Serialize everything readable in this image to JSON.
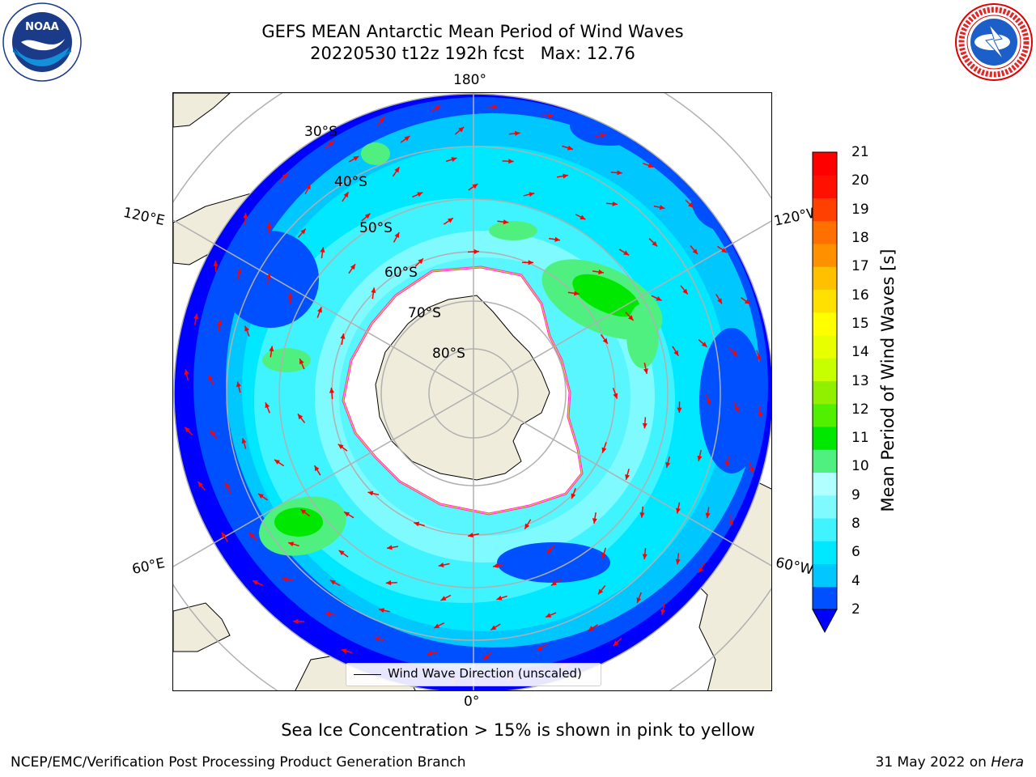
{
  "header": {
    "title_line1": "GEFS MEAN Antarctic Mean Period of Wind Waves",
    "title_line2": "20220530 t12z 192h fcst   Max: 12.76"
  },
  "logos": {
    "left": {
      "icon": "noaa-logo",
      "text": "NOAA"
    },
    "right": {
      "icon": "national-weather-service-logo"
    }
  },
  "map": {
    "projection": "south polar stereographic",
    "longitude_labels": {
      "top": "180°",
      "bottom": "0°",
      "upper_left": "120°E",
      "upper_right": "120°W",
      "lower_left": "60°E",
      "lower_right": "60°W"
    },
    "latitude_labels": [
      "30°S",
      "40°S",
      "50°S",
      "60°S",
      "70°S",
      "80°S"
    ],
    "legend": "Wind Wave Direction (unscaled)",
    "colors": {
      "land": "#efecdc",
      "ice_shelf": "#ffffff",
      "ice_edge_pink": "#ff33cc",
      "ice_edge_yellow": "#ffcc33",
      "arrow": "#ff0000",
      "grid": "#b0b0b0"
    }
  },
  "colorbar": {
    "label": "Mean Period of Wind Waves [s]",
    "ticks": [
      "21",
      "20",
      "19",
      "18",
      "17",
      "16",
      "15",
      "14",
      "13",
      "12",
      "11",
      "10",
      "9",
      "8",
      "6",
      "4",
      "2"
    ],
    "colors_bottom_to_top": [
      "#0050ff",
      "#00c8ff",
      "#00e8ff",
      "#40f4ff",
      "#7ffaff",
      "#b2ffff",
      "#50f080",
      "#00e800",
      "#50f000",
      "#90f000",
      "#c8ff00",
      "#e8ff00",
      "#ffff00",
      "#ffe000",
      "#ffc000",
      "#ff9000",
      "#ff7000",
      "#ff4000",
      "#ff1000",
      "#ff0000"
    ],
    "extend_color": "#0000ff"
  },
  "subtitle": "Sea Ice Concentration > 15% is shown in pink to yellow",
  "footer": {
    "left": "NCEP/EMC/Verification Post Processing Product Generation Branch",
    "right_date": "31 May 2022 on ",
    "right_machine": "Hera"
  }
}
